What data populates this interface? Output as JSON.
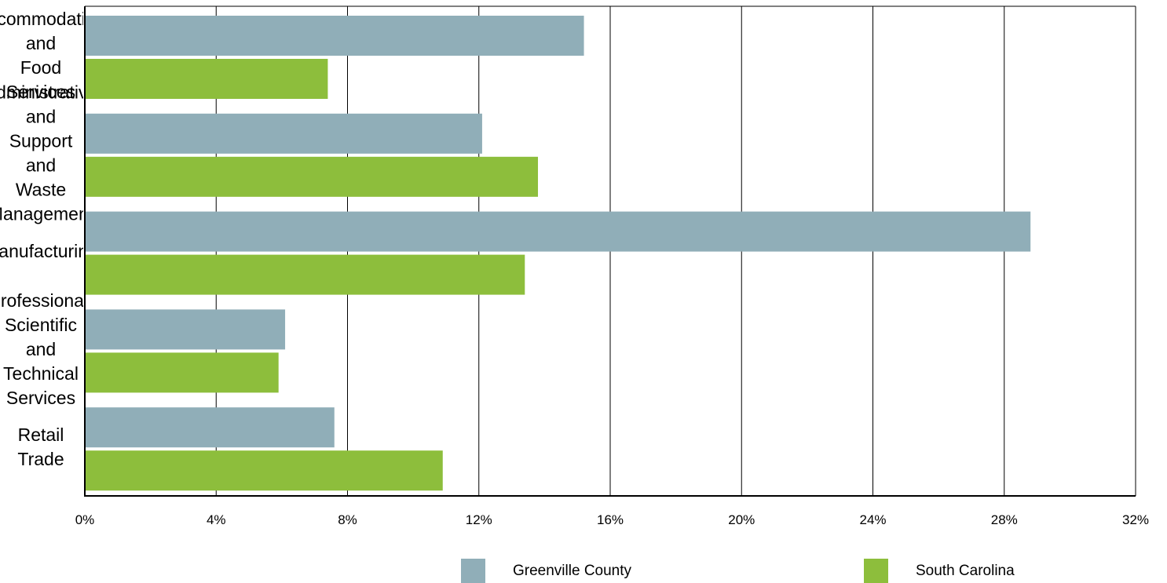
{
  "chart_data": {
    "type": "bar",
    "orientation": "horizontal",
    "categories": [
      "Accommodation and Food Services",
      "Administrative and Support and Waste Management",
      "Manufacturing",
      "Professional, Scientific and Technical Services",
      "Retail Trade"
    ],
    "series": [
      {
        "name": "Greenville County",
        "color": "#90aeb8",
        "values": [
          15.2,
          12.1,
          28.8,
          6.1,
          7.6
        ]
      },
      {
        "name": "South Carolina",
        "color": "#8dbe3c",
        "values": [
          7.4,
          13.8,
          13.4,
          5.9,
          10.9
        ]
      }
    ],
    "xlim": [
      0,
      32
    ],
    "ticks": [
      "0%",
      "4%",
      "8%",
      "12%",
      "16%",
      "20%",
      "24%",
      "28%",
      "32%"
    ],
    "tick_values": [
      0,
      4,
      8,
      12,
      16,
      20,
      24,
      28,
      32
    ],
    "grid": true,
    "legend_position": "bottom",
    "title": "",
    "xlabel": "",
    "ylabel": ""
  }
}
